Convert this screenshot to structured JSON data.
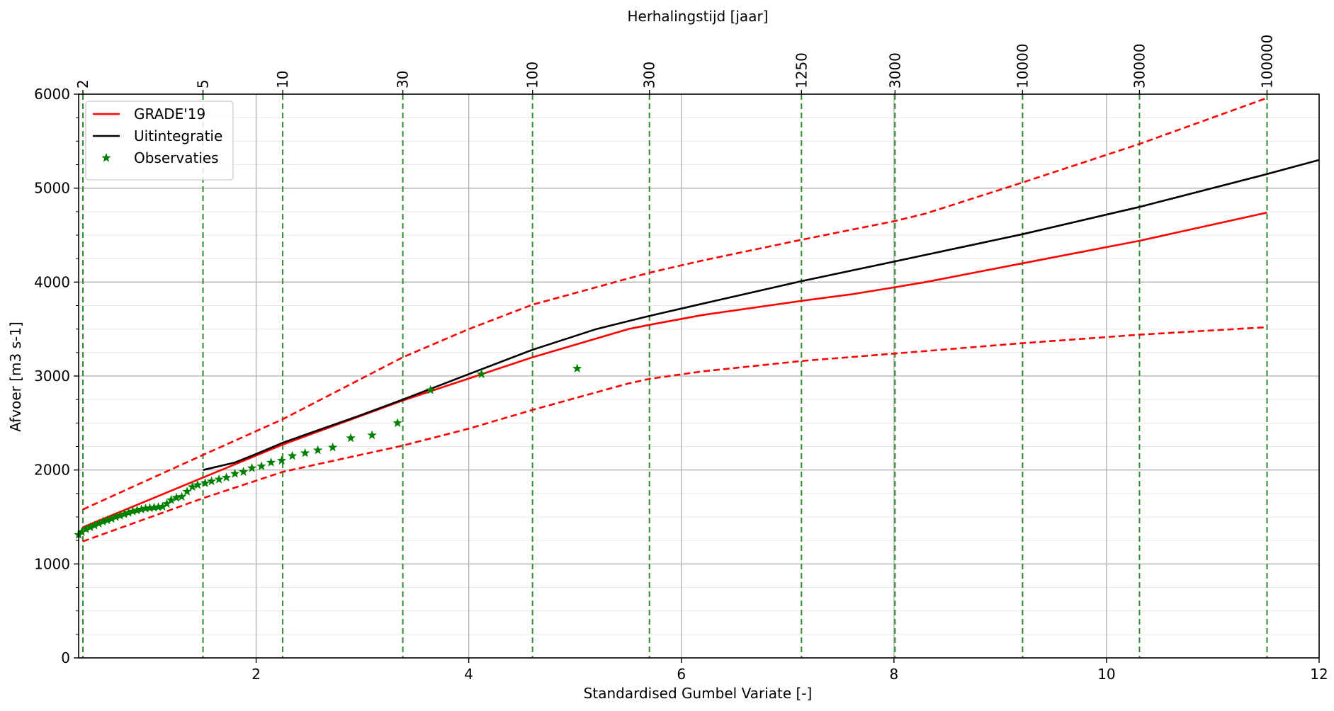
{
  "chart_data": {
    "type": "line",
    "title": "",
    "top_axis_label": "Herhalingstijd [jaar]",
    "xlabel": "Standardised Gumbel Variate [-]",
    "ylabel": "Afvoer [m3 s-1]",
    "xlim": [
      0.33,
      12
    ],
    "ylim": [
      0,
      6000
    ],
    "x_ticks": [
      2,
      4,
      6,
      8,
      10,
      12
    ],
    "x_tick_labels": [
      "2",
      "4",
      "6",
      "8",
      "10",
      "12"
    ],
    "y_ticks": [
      0,
      1000,
      2000,
      3000,
      4000,
      5000,
      6000
    ],
    "y_tick_labels": [
      "0",
      "1000",
      "2000",
      "3000",
      "4000",
      "5000",
      "6000"
    ],
    "y_minor_grid_step": 250,
    "grid": true,
    "legend_position": "top-left",
    "return_periods": [
      {
        "label": "2",
        "x": 0.37
      },
      {
        "label": "5",
        "x": 1.5
      },
      {
        "label": "10",
        "x": 2.25
      },
      {
        "label": "30",
        "x": 3.38
      },
      {
        "label": "100",
        "x": 4.6
      },
      {
        "label": "300",
        "x": 5.7
      },
      {
        "label": "1250",
        "x": 7.13
      },
      {
        "label": "3000",
        "x": 8.01
      },
      {
        "label": "10000",
        "x": 9.21
      },
      {
        "label": "30000",
        "x": 10.31
      },
      {
        "label": "100000",
        "x": 11.51
      }
    ],
    "series": [
      {
        "name": "GRADE'19",
        "color": "#ff0000",
        "style": "solid",
        "legend": true,
        "points": [
          [
            0.37,
            1390
          ],
          [
            1.5,
            1920
          ],
          [
            2.25,
            2270
          ],
          [
            3.38,
            2740
          ],
          [
            4.6,
            3200
          ],
          [
            5.5,
            3500
          ],
          [
            5.7,
            3545
          ],
          [
            6.2,
            3650
          ],
          [
            7.13,
            3800
          ],
          [
            7.6,
            3870
          ],
          [
            8.01,
            3945
          ],
          [
            8.3,
            4000
          ],
          [
            9.21,
            4200
          ],
          [
            10.31,
            4440
          ],
          [
            11.51,
            4740
          ]
        ]
      },
      {
        "name": "",
        "color": "#ff0000",
        "style": "dashed",
        "legend": false,
        "points": [
          [
            0.37,
            1580
          ],
          [
            1.5,
            2160
          ],
          [
            2.25,
            2540
          ],
          [
            3.38,
            3200
          ],
          [
            4.0,
            3500
          ],
          [
            4.6,
            3760
          ],
          [
            5.7,
            4100
          ],
          [
            6.2,
            4230
          ],
          [
            7.13,
            4450
          ],
          [
            8.01,
            4650
          ],
          [
            8.3,
            4730
          ],
          [
            9.21,
            5060
          ],
          [
            10.31,
            5470
          ],
          [
            11.51,
            5960
          ]
        ]
      },
      {
        "name": "",
        "color": "#ff0000",
        "style": "dashed",
        "legend": false,
        "points": [
          [
            0.37,
            1240
          ],
          [
            1.5,
            1700
          ],
          [
            2.25,
            1980
          ],
          [
            3.38,
            2260
          ],
          [
            4.0,
            2440
          ],
          [
            4.6,
            2640
          ],
          [
            5.5,
            2920
          ],
          [
            5.7,
            2970
          ],
          [
            6.2,
            3050
          ],
          [
            7.13,
            3160
          ],
          [
            8.01,
            3240
          ],
          [
            9.21,
            3350
          ],
          [
            10.31,
            3440
          ],
          [
            11.51,
            3520
          ]
        ]
      },
      {
        "name": "Uitintegratie",
        "color": "#000000",
        "style": "solid",
        "legend": true,
        "points": [
          [
            1.5,
            2000
          ],
          [
            1.8,
            2080
          ],
          [
            2.0,
            2170
          ],
          [
            2.25,
            2290
          ],
          [
            2.5,
            2390
          ],
          [
            3.0,
            2590
          ],
          [
            3.38,
            2750
          ],
          [
            4.0,
            3020
          ],
          [
            4.6,
            3280
          ],
          [
            5.2,
            3500
          ],
          [
            5.7,
            3640
          ],
          [
            6.2,
            3770
          ],
          [
            7.13,
            4010
          ],
          [
            8.01,
            4220
          ],
          [
            9.21,
            4510
          ],
          [
            10.31,
            4800
          ],
          [
            11.51,
            5150
          ],
          [
            12.0,
            5300
          ]
        ]
      }
    ],
    "observations": {
      "name": "Observaties",
      "color": "#008000",
      "points": [
        [
          0.33,
          1310
        ],
        [
          0.36,
          1340
        ],
        [
          0.4,
          1370
        ],
        [
          0.44,
          1390
        ],
        [
          0.48,
          1410
        ],
        [
          0.52,
          1430
        ],
        [
          0.56,
          1450
        ],
        [
          0.6,
          1465
        ],
        [
          0.64,
          1480
        ],
        [
          0.68,
          1500
        ],
        [
          0.72,
          1515
        ],
        [
          0.76,
          1530
        ],
        [
          0.8,
          1545
        ],
        [
          0.84,
          1560
        ],
        [
          0.88,
          1570
        ],
        [
          0.92,
          1580
        ],
        [
          0.96,
          1590
        ],
        [
          1.0,
          1595
        ],
        [
          1.04,
          1600
        ],
        [
          1.08,
          1605
        ],
        [
          1.12,
          1610
        ],
        [
          1.16,
          1640
        ],
        [
          1.2,
          1680
        ],
        [
          1.25,
          1705
        ],
        [
          1.3,
          1715
        ],
        [
          1.35,
          1770
        ],
        [
          1.4,
          1820
        ],
        [
          1.45,
          1840
        ],
        [
          1.52,
          1860
        ],
        [
          1.58,
          1880
        ],
        [
          1.65,
          1900
        ],
        [
          1.72,
          1920
        ],
        [
          1.8,
          1960
        ],
        [
          1.88,
          1980
        ],
        [
          1.96,
          2020
        ],
        [
          2.05,
          2040
        ],
        [
          2.14,
          2080
        ],
        [
          2.24,
          2100
        ],
        [
          2.34,
          2150
        ],
        [
          2.46,
          2180
        ],
        [
          2.58,
          2210
        ],
        [
          2.72,
          2240
        ],
        [
          2.89,
          2340
        ],
        [
          3.09,
          2370
        ],
        [
          3.33,
          2500
        ],
        [
          3.64,
          2850
        ],
        [
          4.12,
          3020
        ],
        [
          5.02,
          3080
        ]
      ]
    }
  }
}
